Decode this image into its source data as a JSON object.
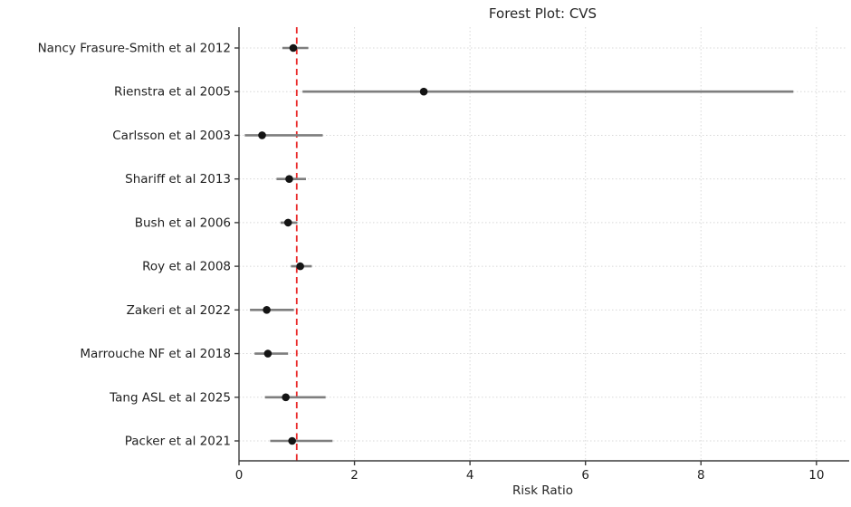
{
  "chart_data": {
    "type": "scatter",
    "variant": "forest-plot",
    "title": "Forest Plot: CVS",
    "xlabel": "Risk Ratio",
    "ylabel": "",
    "xticks": [
      0,
      2,
      4,
      6,
      8,
      10
    ],
    "xlim": [
      0,
      10.52
    ],
    "grid": {
      "horizontal": true,
      "vertical": true,
      "style": "dotted",
      "color": "#d8d8d8"
    },
    "legend": "none",
    "reference_line": {
      "x": 1.0,
      "color": "#ea2b2b",
      "style": "dashed"
    },
    "marker_color": "#141414",
    "ci_color": "#7e7e7e",
    "axis_color": "#3c3c3c",
    "studies": [
      {
        "label": "Nancy Frasure-Smith et al 2012",
        "estimate": 0.94,
        "ci_low": 0.75,
        "ci_high": 1.2
      },
      {
        "label": "Rienstra et al 2005",
        "estimate": 3.2,
        "ci_low": 1.1,
        "ci_high": 9.6
      },
      {
        "label": "Carlsson et al 2003",
        "estimate": 0.4,
        "ci_low": 0.1,
        "ci_high": 1.45
      },
      {
        "label": "Shariff et al 2013",
        "estimate": 0.87,
        "ci_low": 0.65,
        "ci_high": 1.16
      },
      {
        "label": "Bush et al 2006",
        "estimate": 0.85,
        "ci_low": 0.72,
        "ci_high": 1.01
      },
      {
        "label": "Roy et al 2008",
        "estimate": 1.06,
        "ci_low": 0.9,
        "ci_high": 1.26
      },
      {
        "label": "Zakeri et al 2022",
        "estimate": 0.48,
        "ci_low": 0.19,
        "ci_high": 0.95
      },
      {
        "label": "Marrouche NF et al 2018",
        "estimate": 0.5,
        "ci_low": 0.27,
        "ci_high": 0.85
      },
      {
        "label": "Tang ASL et al 2025",
        "estimate": 0.81,
        "ci_low": 0.45,
        "ci_high": 1.5
      },
      {
        "label": "Packer et al 2021",
        "estimate": 0.92,
        "ci_low": 0.54,
        "ci_high": 1.62
      }
    ]
  }
}
